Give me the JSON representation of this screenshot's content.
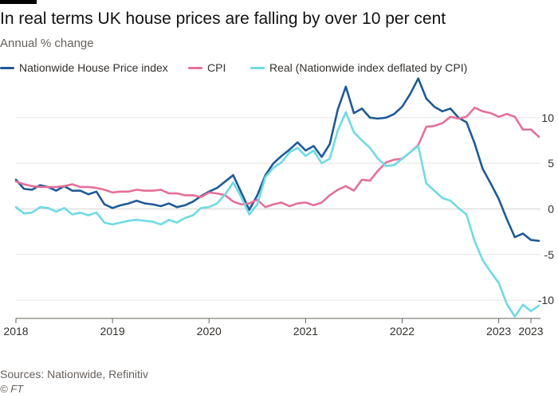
{
  "header": {
    "title": "In real terms UK house prices are falling by over 10 per cent",
    "subtitle": "Annual % change"
  },
  "legend": [
    {
      "label": "Nationwide House Price index",
      "color": "#1f5a96"
    },
    {
      "label": "CPI",
      "color": "#e4709a"
    },
    {
      "label": "Real (Nationwide index deflated by CPI)",
      "color": "#6fdae3"
    }
  ],
  "footer": {
    "source": "Sources: Nationwide, Refinitiv",
    "credit": "© FT"
  },
  "colors": {
    "grid": "#e6e2df",
    "zero_line": "#d9d4cf",
    "axis_text": "#33302e"
  },
  "chart_data": {
    "type": "line",
    "ylim": [
      -12,
      14
    ],
    "yticks": [
      10,
      5,
      0,
      -5,
      -10
    ],
    "x_start": "2018-01",
    "x_end": "2023-05",
    "xticks": [
      {
        "label": "2018",
        "date": "2018-01"
      },
      {
        "label": "2019",
        "date": "2019-01"
      },
      {
        "label": "2020",
        "date": "2020-01"
      },
      {
        "label": "2021",
        "date": "2021-01"
      },
      {
        "label": "2022",
        "date": "2022-01"
      },
      {
        "label": "2023",
        "date": "2023-01"
      },
      {
        "label": "2023",
        "date": "2023-05"
      }
    ],
    "grid": true,
    "legend_position": "top",
    "series": [
      {
        "name": "Nationwide House Price index",
        "color": "#1f5a96",
        "points": [
          [
            "2018-01",
            3.2
          ],
          [
            "2018-02",
            2.2
          ],
          [
            "2018-03",
            2.1
          ],
          [
            "2018-04",
            2.6
          ],
          [
            "2018-05",
            2.4
          ],
          [
            "2018-06",
            2.0
          ],
          [
            "2018-07",
            2.5
          ],
          [
            "2018-08",
            2.0
          ],
          [
            "2018-09",
            2.0
          ],
          [
            "2018-10",
            1.6
          ],
          [
            "2018-11",
            1.9
          ],
          [
            "2018-12",
            0.5
          ],
          [
            "2019-01",
            0.1
          ],
          [
            "2019-02",
            0.4
          ],
          [
            "2019-03",
            0.6
          ],
          [
            "2019-04",
            0.9
          ],
          [
            "2019-05",
            0.6
          ],
          [
            "2019-06",
            0.5
          ],
          [
            "2019-07",
            0.3
          ],
          [
            "2019-08",
            0.6
          ],
          [
            "2019-09",
            0.2
          ],
          [
            "2019-10",
            0.4
          ],
          [
            "2019-11",
            0.8
          ],
          [
            "2019-12",
            1.4
          ],
          [
            "2020-01",
            1.9
          ],
          [
            "2020-02",
            2.3
          ],
          [
            "2020-03",
            3.0
          ],
          [
            "2020-04",
            3.7
          ],
          [
            "2020-05",
            1.8
          ],
          [
            "2020-06",
            -0.1
          ],
          [
            "2020-07",
            1.5
          ],
          [
            "2020-08",
            3.7
          ],
          [
            "2020-09",
            5.0
          ],
          [
            "2020-10",
            5.8
          ],
          [
            "2020-11",
            6.5
          ],
          [
            "2020-12",
            7.3
          ],
          [
            "2021-01",
            6.4
          ],
          [
            "2021-02",
            6.9
          ],
          [
            "2021-03",
            5.7
          ],
          [
            "2021-04",
            7.1
          ],
          [
            "2021-05",
            10.9
          ],
          [
            "2021-06",
            13.4
          ],
          [
            "2021-07",
            10.5
          ],
          [
            "2021-08",
            11.0
          ],
          [
            "2021-09",
            10.0
          ],
          [
            "2021-10",
            9.9
          ],
          [
            "2021-11",
            10.0
          ],
          [
            "2021-12",
            10.4
          ],
          [
            "2022-01",
            11.2
          ],
          [
            "2022-02",
            12.6
          ],
          [
            "2022-03",
            14.3
          ],
          [
            "2022-04",
            12.1
          ],
          [
            "2022-05",
            11.2
          ],
          [
            "2022-06",
            10.7
          ],
          [
            "2022-07",
            11.0
          ],
          [
            "2022-08",
            10.0
          ],
          [
            "2022-09",
            9.5
          ],
          [
            "2022-10",
            7.2
          ],
          [
            "2022-11",
            4.4
          ],
          [
            "2022-12",
            2.8
          ],
          [
            "2023-01",
            1.1
          ],
          [
            "2023-02",
            -1.1
          ],
          [
            "2023-03",
            -3.1
          ],
          [
            "2023-04",
            -2.7
          ],
          [
            "2023-05",
            -3.4
          ],
          [
            "2023-06",
            -3.5
          ]
        ]
      },
      {
        "name": "CPI",
        "color": "#e4709a",
        "points": [
          [
            "2018-01",
            3.0
          ],
          [
            "2018-02",
            2.7
          ],
          [
            "2018-03",
            2.5
          ],
          [
            "2018-04",
            2.4
          ],
          [
            "2018-05",
            2.4
          ],
          [
            "2018-06",
            2.4
          ],
          [
            "2018-07",
            2.5
          ],
          [
            "2018-08",
            2.7
          ],
          [
            "2018-09",
            2.4
          ],
          [
            "2018-10",
            2.4
          ],
          [
            "2018-11",
            2.3
          ],
          [
            "2018-12",
            2.1
          ],
          [
            "2019-01",
            1.8
          ],
          [
            "2019-02",
            1.9
          ],
          [
            "2019-03",
            1.9
          ],
          [
            "2019-04",
            2.1
          ],
          [
            "2019-05",
            2.0
          ],
          [
            "2019-06",
            2.0
          ],
          [
            "2019-07",
            2.1
          ],
          [
            "2019-08",
            1.7
          ],
          [
            "2019-09",
            1.7
          ],
          [
            "2019-10",
            1.5
          ],
          [
            "2019-11",
            1.5
          ],
          [
            "2019-12",
            1.3
          ],
          [
            "2020-01",
            1.8
          ],
          [
            "2020-02",
            1.7
          ],
          [
            "2020-03",
            1.5
          ],
          [
            "2020-04",
            0.8
          ],
          [
            "2020-05",
            0.5
          ],
          [
            "2020-06",
            0.6
          ],
          [
            "2020-07",
            1.0
          ],
          [
            "2020-08",
            0.2
          ],
          [
            "2020-09",
            0.5
          ],
          [
            "2020-10",
            0.7
          ],
          [
            "2020-11",
            0.3
          ],
          [
            "2020-12",
            0.6
          ],
          [
            "2021-01",
            0.7
          ],
          [
            "2021-02",
            0.4
          ],
          [
            "2021-03",
            0.7
          ],
          [
            "2021-04",
            1.5
          ],
          [
            "2021-05",
            2.1
          ],
          [
            "2021-06",
            2.5
          ],
          [
            "2021-07",
            2.0
          ],
          [
            "2021-08",
            3.2
          ],
          [
            "2021-09",
            3.1
          ],
          [
            "2021-10",
            4.2
          ],
          [
            "2021-11",
            5.1
          ],
          [
            "2021-12",
            5.4
          ],
          [
            "2022-01",
            5.5
          ],
          [
            "2022-02",
            6.2
          ],
          [
            "2022-03",
            7.0
          ],
          [
            "2022-04",
            9.0
          ],
          [
            "2022-05",
            9.1
          ],
          [
            "2022-06",
            9.4
          ],
          [
            "2022-07",
            10.1
          ],
          [
            "2022-08",
            9.9
          ],
          [
            "2022-09",
            10.1
          ],
          [
            "2022-10",
            11.1
          ],
          [
            "2022-11",
            10.7
          ],
          [
            "2022-12",
            10.5
          ],
          [
            "2023-01",
            10.1
          ],
          [
            "2023-02",
            10.4
          ],
          [
            "2023-03",
            10.1
          ],
          [
            "2023-04",
            8.7
          ],
          [
            "2023-05",
            8.7
          ],
          [
            "2023-06",
            7.9
          ]
        ]
      },
      {
        "name": "Real (Nationwide index deflated by CPI)",
        "color": "#6fdae3",
        "points": [
          [
            "2018-01",
            0.2
          ],
          [
            "2018-02",
            -0.5
          ],
          [
            "2018-03",
            -0.4
          ],
          [
            "2018-04",
            0.2
          ],
          [
            "2018-05",
            0.1
          ],
          [
            "2018-06",
            -0.3
          ],
          [
            "2018-07",
            0.1
          ],
          [
            "2018-08",
            -0.6
          ],
          [
            "2018-09",
            -0.4
          ],
          [
            "2018-10",
            -0.7
          ],
          [
            "2018-11",
            -0.4
          ],
          [
            "2018-12",
            -1.5
          ],
          [
            "2019-01",
            -1.7
          ],
          [
            "2019-02",
            -1.5
          ],
          [
            "2019-03",
            -1.3
          ],
          [
            "2019-04",
            -1.2
          ],
          [
            "2019-05",
            -1.3
          ],
          [
            "2019-06",
            -1.4
          ],
          [
            "2019-07",
            -1.7
          ],
          [
            "2019-08",
            -1.2
          ],
          [
            "2019-09",
            -1.5
          ],
          [
            "2019-10",
            -1.0
          ],
          [
            "2019-11",
            -0.7
          ],
          [
            "2019-12",
            0.1
          ],
          [
            "2020-01",
            0.2
          ],
          [
            "2020-02",
            0.6
          ],
          [
            "2020-03",
            1.6
          ],
          [
            "2020-04",
            2.9
          ],
          [
            "2020-05",
            1.3
          ],
          [
            "2020-06",
            -0.6
          ],
          [
            "2020-07",
            0.5
          ],
          [
            "2020-08",
            3.5
          ],
          [
            "2020-09",
            4.5
          ],
          [
            "2020-10",
            5.1
          ],
          [
            "2020-11",
            6.2
          ],
          [
            "2020-12",
            6.7
          ],
          [
            "2021-01",
            5.8
          ],
          [
            "2021-02",
            6.4
          ],
          [
            "2021-03",
            5.0
          ],
          [
            "2021-04",
            5.5
          ],
          [
            "2021-05",
            8.6
          ],
          [
            "2021-06",
            10.6
          ],
          [
            "2021-07",
            8.4
          ],
          [
            "2021-08",
            7.5
          ],
          [
            "2021-09",
            6.7
          ],
          [
            "2021-10",
            5.5
          ],
          [
            "2021-11",
            4.7
          ],
          [
            "2021-12",
            4.8
          ],
          [
            "2022-01",
            5.5
          ],
          [
            "2022-02",
            6.2
          ],
          [
            "2022-03",
            6.9
          ],
          [
            "2022-04",
            2.8
          ],
          [
            "2022-05",
            2.0
          ],
          [
            "2022-06",
            1.2
          ],
          [
            "2022-07",
            0.9
          ],
          [
            "2022-08",
            0.1
          ],
          [
            "2022-09",
            -0.6
          ],
          [
            "2022-10",
            -3.5
          ],
          [
            "2022-11",
            -5.6
          ],
          [
            "2022-12",
            -6.9
          ],
          [
            "2023-01",
            -8.1
          ],
          [
            "2023-02",
            -10.4
          ],
          [
            "2023-03",
            -11.8
          ],
          [
            "2023-04",
            -10.5
          ],
          [
            "2023-05",
            -11.2
          ],
          [
            "2023-06",
            -10.6
          ]
        ]
      }
    ]
  }
}
